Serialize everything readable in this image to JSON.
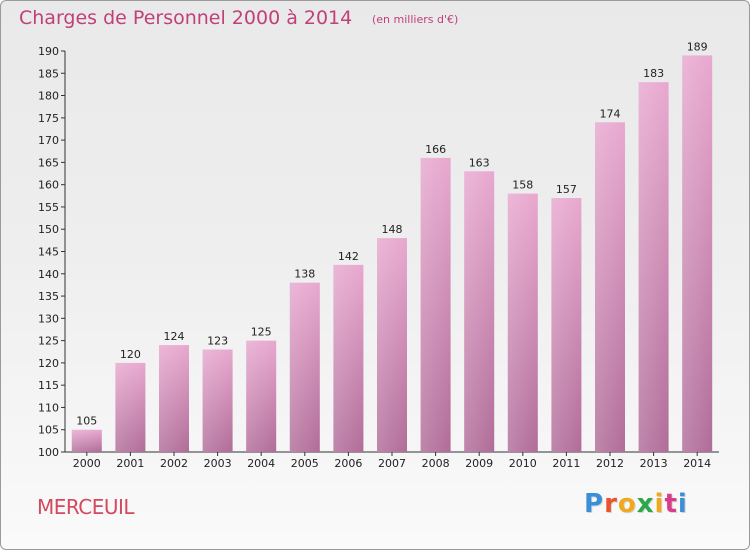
{
  "title": "Charges de Personnel 2000 à 2014",
  "subtitle": "(en milliers d'€)",
  "commune": "MERCEUIL",
  "logo": {
    "letters": [
      "P",
      "r",
      "o",
      "x",
      "i",
      "t",
      "i"
    ],
    "colors": [
      "#3b8fd6",
      "#e8552d",
      "#f0a91c",
      "#2aa84a",
      "#f0a91c",
      "#d93d8a",
      "#3b8fd6"
    ]
  },
  "colors": {
    "bar_top": "#e8a8cf",
    "bar_bottom": "#b06c98",
    "title": "#c0407a"
  },
  "chart_data": {
    "type": "bar",
    "categories": [
      "2000",
      "2001",
      "2002",
      "2003",
      "2004",
      "2005",
      "2006",
      "2007",
      "2008",
      "2009",
      "2010",
      "2011",
      "2012",
      "2013",
      "2014"
    ],
    "values": [
      105,
      120,
      124,
      123,
      125,
      138,
      142,
      148,
      166,
      163,
      158,
      157,
      174,
      183,
      189
    ],
    "ylim": [
      100,
      190
    ],
    "yticks": [
      100,
      105,
      110,
      115,
      120,
      125,
      130,
      135,
      140,
      145,
      150,
      155,
      160,
      165,
      170,
      175,
      180,
      185,
      190
    ],
    "grid": false,
    "legend": "none"
  }
}
